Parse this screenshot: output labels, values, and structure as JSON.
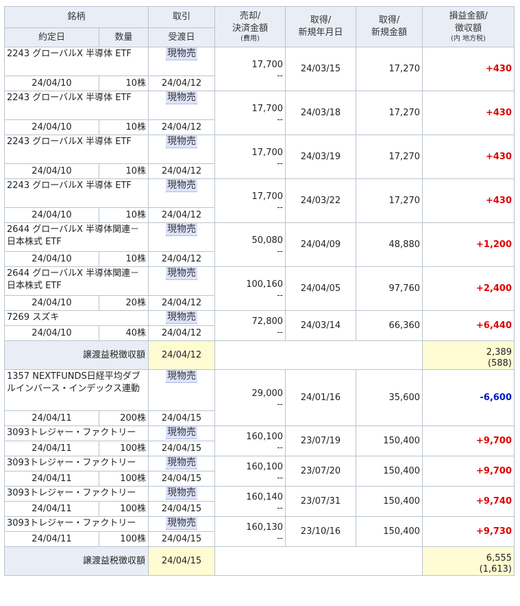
{
  "header": {
    "meigara": "銘柄",
    "torihiki": "取引",
    "baikyaku": "売却/",
    "kessai": "決済金額",
    "hiyou": "(費用)",
    "shutoku1": "取得/",
    "shinki_date": "新規年月日",
    "shutoku2": "取得/",
    "shinki_amount": "新規金額",
    "soneki": "損益金額/",
    "choshu": "徴収額",
    "uchi": "(内 地方税)",
    "yakujo": "約定日",
    "suryo": "数量",
    "ukewatashi": "受渡日"
  },
  "rows": [
    {
      "name": "2243 グローバルX 半導体 ETF",
      "trade": "現物売",
      "sale": "17,700",
      "fee": "--",
      "acq_date": "24/03/15",
      "acq_amount": "17,270",
      "pl": "+430",
      "contract": "24/04/10",
      "qty": "10株",
      "settle": "24/04/12"
    },
    {
      "name": "2243 グローバルX 半導体 ETF",
      "trade": "現物売",
      "sale": "17,700",
      "fee": "--",
      "acq_date": "24/03/18",
      "acq_amount": "17,270",
      "pl": "+430",
      "contract": "24/04/10",
      "qty": "10株",
      "settle": "24/04/12"
    },
    {
      "name": "2243 グローバルX 半導体 ETF",
      "trade": "現物売",
      "sale": "17,700",
      "fee": "--",
      "acq_date": "24/03/19",
      "acq_amount": "17,270",
      "pl": "+430",
      "contract": "24/04/10",
      "qty": "10株",
      "settle": "24/04/12"
    },
    {
      "name": "2243 グローバルX 半導体 ETF",
      "trade": "現物売",
      "sale": "17,700",
      "fee": "--",
      "acq_date": "24/03/22",
      "acq_amount": "17,270",
      "pl": "+430",
      "contract": "24/04/10",
      "qty": "10株",
      "settle": "24/04/12"
    },
    {
      "name": "2644 グローバルX 半導体関連－日本株式 ETF",
      "trade": "現物売",
      "sale": "50,080",
      "fee": "--",
      "acq_date": "24/04/09",
      "acq_amount": "48,880",
      "pl": "+1,200",
      "contract": "24/04/10",
      "qty": "10株",
      "settle": "24/04/12"
    },
    {
      "name": "2644 グローバルX 半導体関連－日本株式 ETF",
      "trade": "現物売",
      "sale": "100,160",
      "fee": "--",
      "acq_date": "24/04/05",
      "acq_amount": "97,760",
      "pl": "+2,400",
      "contract": "24/04/10",
      "qty": "20株",
      "settle": "24/04/12"
    },
    {
      "name": "7269 スズキ",
      "trade": "現物売",
      "sale": "72,800",
      "fee": "--",
      "acq_date": "24/03/14",
      "acq_amount": "66,360",
      "pl": "+6,440",
      "contract": "24/04/10",
      "qty": "40株",
      "settle": "24/04/12"
    }
  ],
  "summary1": {
    "label": "譲渡益税徴収額",
    "date": "24/04/12",
    "total": "2,389",
    "local": "(588)"
  },
  "rows2": [
    {
      "name": "1357 NEXTFUNDS日経平均ダブルインバース・インデックス連動",
      "trade": "現物売",
      "sale": "29,000",
      "fee": "--",
      "acq_date": "24/01/16",
      "acq_amount": "35,600",
      "pl": "-6,600",
      "contract": "24/04/11",
      "qty": "200株",
      "settle": "24/04/15"
    },
    {
      "name": "3093トレジャー・ファクトリー",
      "trade": "現物売",
      "sale": "160,100",
      "fee": "--",
      "acq_date": "23/07/19",
      "acq_amount": "150,400",
      "pl": "+9,700",
      "contract": "24/04/11",
      "qty": "100株",
      "settle": "24/04/15"
    },
    {
      "name": "3093トレジャー・ファクトリー",
      "trade": "現物売",
      "sale": "160,100",
      "fee": "--",
      "acq_date": "23/07/20",
      "acq_amount": "150,400",
      "pl": "+9,700",
      "contract": "24/04/11",
      "qty": "100株",
      "settle": "24/04/15"
    },
    {
      "name": "3093トレジャー・ファクトリー",
      "trade": "現物売",
      "sale": "160,140",
      "fee": "--",
      "acq_date": "23/07/31",
      "acq_amount": "150,400",
      "pl": "+9,740",
      "contract": "24/04/11",
      "qty": "100株",
      "settle": "24/04/15"
    },
    {
      "name": "3093トレジャー・ファクトリー",
      "trade": "現物売",
      "sale": "160,130",
      "fee": "--",
      "acq_date": "23/10/16",
      "acq_amount": "150,400",
      "pl": "+9,730",
      "contract": "24/04/11",
      "qty": "100株",
      "settle": "24/04/15"
    }
  ],
  "summary2": {
    "label": "譲渡益税徴収額",
    "date": "24/04/15",
    "total": "6,555",
    "local": "(1,613)"
  },
  "colors": {
    "header_bg": "#e9eef6",
    "border": "#b9c3cf",
    "profit": "#e00000",
    "loss": "#0019c8",
    "badge_bg": "#dde3fb",
    "summary_bg": "#fffbd2"
  }
}
